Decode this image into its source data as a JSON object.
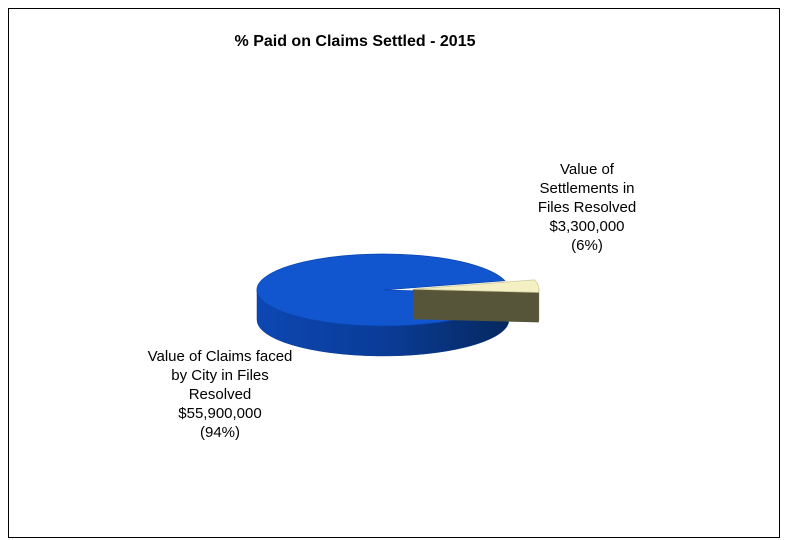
{
  "chart_data": {
    "type": "pie3d",
    "title": "% Paid on Claims Settled - 2015",
    "categories": [
      "Value of Claims faced by City in Files Resolved",
      "Value of Settlements in Files Resolved"
    ],
    "values": [
      55900000,
      3300000
    ],
    "value_labels": [
      "$55,900,000",
      "$3,300,000"
    ],
    "percent_labels": [
      "(94%)",
      "(6%)"
    ],
    "colors": [
      "#1256cf",
      "#f4f0c4"
    ]
  }
}
